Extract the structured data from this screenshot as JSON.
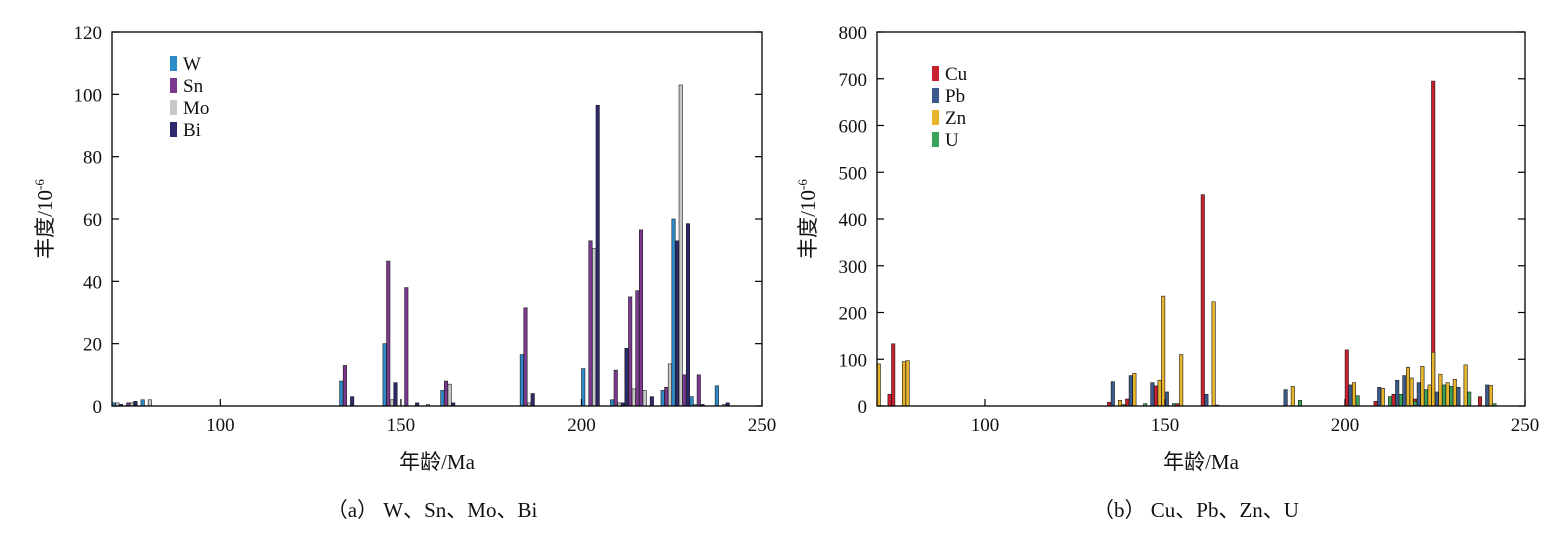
{
  "chart_data": [
    {
      "type": "bar",
      "caption": "（a） W、Sn、Mo、Bi",
      "xlabel": "年龄/Ma",
      "ylabel_main": "丰度/10",
      "ylabel_exp": "-6",
      "xlim": [
        70,
        250
      ],
      "ylim": [
        0,
        120
      ],
      "xticks": [
        100,
        150,
        200,
        250
      ],
      "yticks": [
        0,
        20,
        40,
        60,
        80,
        100,
        120
      ],
      "legend_position": "top-left",
      "grid": false,
      "series": [
        {
          "name": "W",
          "color": "#2e8bc9",
          "points": [
            [
              70.5,
              1
            ],
            [
              78.5,
              2
            ],
            [
              133.5,
              8
            ],
            [
              145.5,
              20
            ],
            [
              161.5,
              5
            ],
            [
              183.5,
              16.5
            ],
            [
              200.5,
              12
            ],
            [
              208.5,
              2
            ],
            [
              212.5,
              18.5
            ],
            [
              222.5,
              5
            ],
            [
              225.5,
              60
            ],
            [
              230.5,
              3
            ],
            [
              237.5,
              6.5
            ]
          ]
        },
        {
          "name": "Sn",
          "color": "#7b3a8f",
          "points": [
            [
              74.5,
              1
            ],
            [
              80.5,
              0.5
            ],
            [
              134.5,
              13
            ],
            [
              146.5,
              46.5
            ],
            [
              151.5,
              38
            ],
            [
              162.5,
              8
            ],
            [
              184.5,
              31.5
            ],
            [
              202.5,
              53
            ],
            [
              209.5,
              11.5
            ],
            [
              213.5,
              35
            ],
            [
              215.5,
              37
            ],
            [
              216.5,
              56.5
            ],
            [
              223.5,
              6
            ],
            [
              228.5,
              10
            ],
            [
              232.5,
              10
            ]
          ]
        },
        {
          "name": "Mo",
          "color": "#c8c8c8",
          "points": [
            [
              71.5,
              1
            ],
            [
              75.5,
              1
            ],
            [
              80.5,
              2
            ],
            [
              147.5,
              2
            ],
            [
              157.5,
              0.5
            ],
            [
              163.5,
              7
            ],
            [
              185.5,
              1
            ],
            [
              203.5,
              50.5
            ],
            [
              210.5,
              1
            ],
            [
              214.5,
              5.5
            ],
            [
              217.5,
              5
            ],
            [
              224.5,
              13.5
            ],
            [
              227.5,
              103
            ],
            [
              231.5,
              0.5
            ],
            [
              239.5,
              0.5
            ]
          ]
        },
        {
          "name": "Bi",
          "color": "#2d2a6b",
          "points": [
            [
              72.5,
              0.5
            ],
            [
              76.5,
              1.5
            ],
            [
              136.5,
              3
            ],
            [
              148.5,
              7.5
            ],
            [
              154.5,
              1
            ],
            [
              164.5,
              1
            ],
            [
              186.5,
              4
            ],
            [
              204.5,
              96.5
            ],
            [
              211.5,
              1
            ],
            [
              212.5,
              18.5
            ],
            [
              219.5,
              3
            ],
            [
              226.5,
              53
            ],
            [
              229.5,
              58.5
            ],
            [
              233.5,
              0.5
            ],
            [
              240.5,
              1
            ]
          ]
        }
      ]
    },
    {
      "type": "bar",
      "caption": "（b） Cu、Pb、Zn、U",
      "xlabel": "年龄/Ma",
      "ylabel_main": "丰度/10",
      "ylabel_exp": "-6",
      "xlim": [
        70,
        250
      ],
      "ylim": [
        0,
        800
      ],
      "xticks": [
        100,
        150,
        200,
        250
      ],
      "yticks": [
        0,
        100,
        200,
        300,
        400,
        500,
        600,
        700,
        800
      ],
      "legend_position": "top-left",
      "grid": false,
      "series": [
        {
          "name": "Cu",
          "color": "#c8202f",
          "points": [
            [
              73.5,
              25
            ],
            [
              74.5,
              133
            ],
            [
              134.5,
              8
            ],
            [
              139.5,
              15
            ],
            [
              147.5,
              43
            ],
            [
              153.5,
              5
            ],
            [
              160.5,
              452
            ],
            [
              200.5,
              120
            ],
            [
              208.5,
              10
            ],
            [
              213.5,
              25
            ],
            [
              219.5,
              15
            ],
            [
              224.5,
              695
            ],
            [
              237.5,
              20
            ]
          ]
        },
        {
          "name": "Pb",
          "color": "#3a5a8c",
          "points": [
            [
              135.5,
              52
            ],
            [
              140.5,
              65
            ],
            [
              146.5,
              50
            ],
            [
              150.5,
              30
            ],
            [
              161.5,
              25
            ],
            [
              183.5,
              35
            ],
            [
              201.5,
              45
            ],
            [
              209.5,
              40
            ],
            [
              214.5,
              55
            ],
            [
              216.5,
              65
            ],
            [
              220.5,
              50
            ],
            [
              225.5,
              30
            ],
            [
              231.5,
              40
            ],
            [
              239.5,
              45
            ]
          ]
        },
        {
          "name": "Zn",
          "color": "#e6b32a",
          "points": [
            [
              70.5,
              90
            ],
            [
              77.5,
              95
            ],
            [
              78.5,
              97
            ],
            [
              137.5,
              12
            ],
            [
              141.5,
              70
            ],
            [
              148.5,
              55
            ],
            [
              149.5,
              235
            ],
            [
              154.5,
              110
            ],
            [
              163.5,
              223
            ],
            [
              185.5,
              42
            ],
            [
              202.5,
              50
            ],
            [
              210.5,
              38
            ],
            [
              217.5,
              83
            ],
            [
              218.5,
              60
            ],
            [
              221.5,
              85
            ],
            [
              223.5,
              45
            ],
            [
              224.5,
              115
            ],
            [
              226.5,
              68
            ],
            [
              228.5,
              50
            ],
            [
              230.5,
              57
            ],
            [
              233.5,
              88
            ],
            [
              240.5,
              44
            ]
          ]
        },
        {
          "name": "U",
          "color": "#3aa35a",
          "points": [
            [
              138.5,
              3
            ],
            [
              144.5,
              5
            ],
            [
              152.5,
              5
            ],
            [
              164.5,
              2
            ],
            [
              187.5,
              12
            ],
            [
              203.5,
              22
            ],
            [
              212.5,
              20
            ],
            [
              215.5,
              25
            ],
            [
              219.5,
              10
            ],
            [
              222.5,
              35
            ],
            [
              227.5,
              45
            ],
            [
              229.5,
              42
            ],
            [
              234.5,
              30
            ],
            [
              241.5,
              5
            ]
          ]
        }
      ]
    }
  ]
}
